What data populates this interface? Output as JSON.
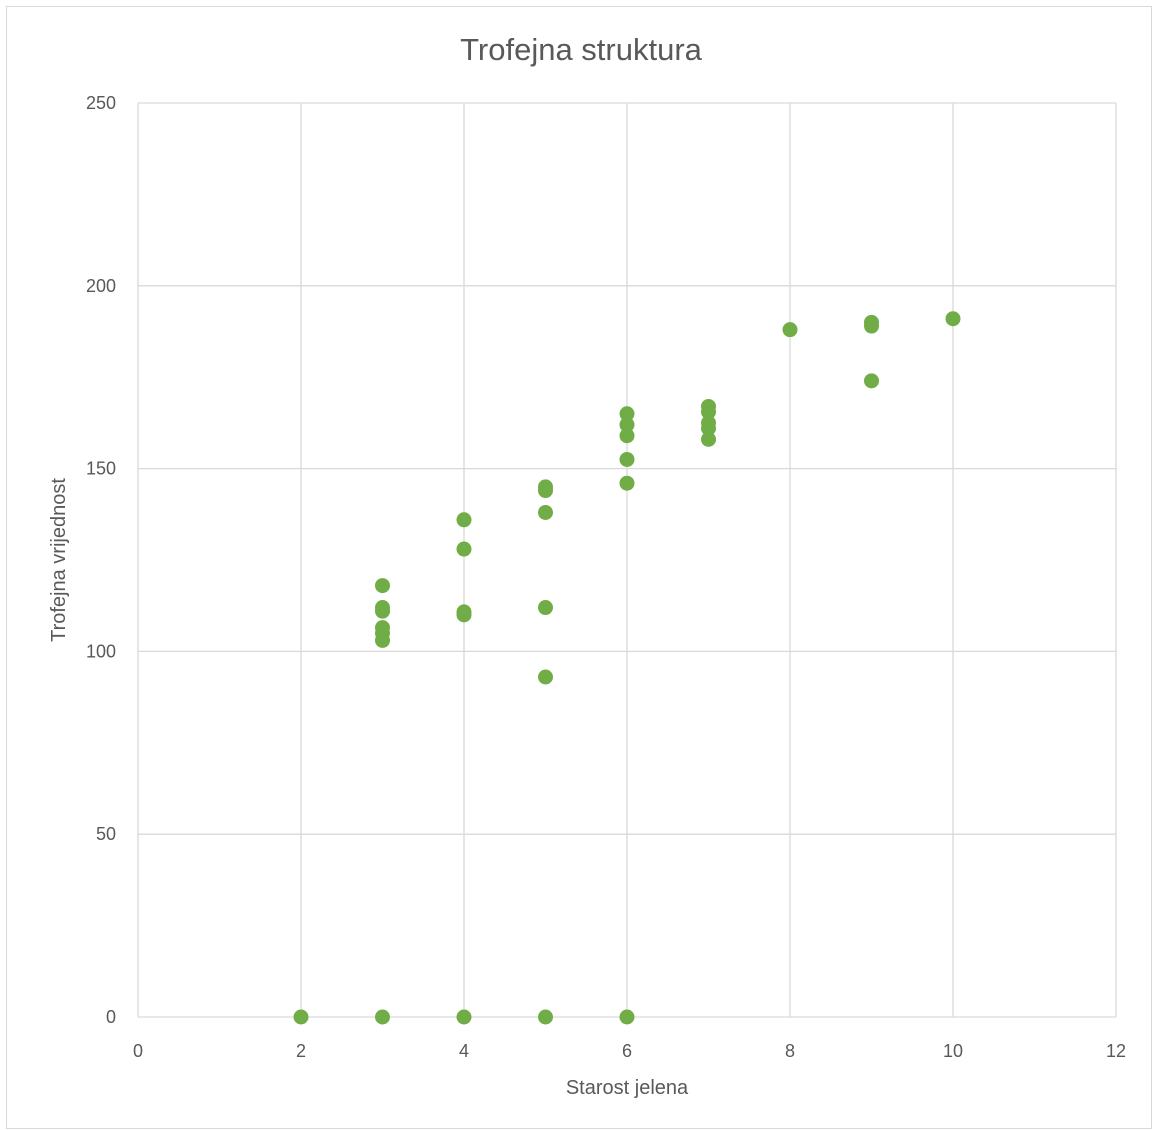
{
  "chart_data": {
    "type": "scatter",
    "title": "Trofejna struktura",
    "xlabel": "Starost jelena",
    "ylabel": "Trofejna vrijednost",
    "xlim": [
      0,
      12
    ],
    "ylim": [
      0,
      250
    ],
    "x_ticks": [
      0,
      2,
      4,
      6,
      8,
      10,
      12
    ],
    "y_ticks": [
      0,
      50,
      100,
      150,
      200,
      250
    ],
    "grid": true,
    "legend": "none",
    "marker_color": "#70ad47",
    "series": [
      {
        "points": [
          {
            "x": 2,
            "y": 0
          },
          {
            "x": 3,
            "y": 0
          },
          {
            "x": 4,
            "y": 0
          },
          {
            "x": 5,
            "y": 0
          },
          {
            "x": 6,
            "y": 0
          },
          {
            "x": 3,
            "y": 103
          },
          {
            "x": 3,
            "y": 105
          },
          {
            "x": 3,
            "y": 106.5
          },
          {
            "x": 3,
            "y": 111
          },
          {
            "x": 3,
            "y": 112
          },
          {
            "x": 3,
            "y": 118
          },
          {
            "x": 4,
            "y": 110
          },
          {
            "x": 4,
            "y": 110.8
          },
          {
            "x": 4,
            "y": 128
          },
          {
            "x": 4,
            "y": 136
          },
          {
            "x": 5,
            "y": 93
          },
          {
            "x": 5,
            "y": 112
          },
          {
            "x": 5,
            "y": 138
          },
          {
            "x": 5,
            "y": 144
          },
          {
            "x": 5,
            "y": 145
          },
          {
            "x": 6,
            "y": 146
          },
          {
            "x": 6,
            "y": 152.5
          },
          {
            "x": 6,
            "y": 159
          },
          {
            "x": 6,
            "y": 162
          },
          {
            "x": 6,
            "y": 165
          },
          {
            "x": 7,
            "y": 158
          },
          {
            "x": 7,
            "y": 161
          },
          {
            "x": 7,
            "y": 162.5
          },
          {
            "x": 7,
            "y": 165.5
          },
          {
            "x": 7,
            "y": 167
          },
          {
            "x": 8,
            "y": 188
          },
          {
            "x": 9,
            "y": 174
          },
          {
            "x": 9,
            "y": 189
          },
          {
            "x": 9,
            "y": 190
          },
          {
            "x": 10,
            "y": 191
          }
        ]
      }
    ]
  }
}
